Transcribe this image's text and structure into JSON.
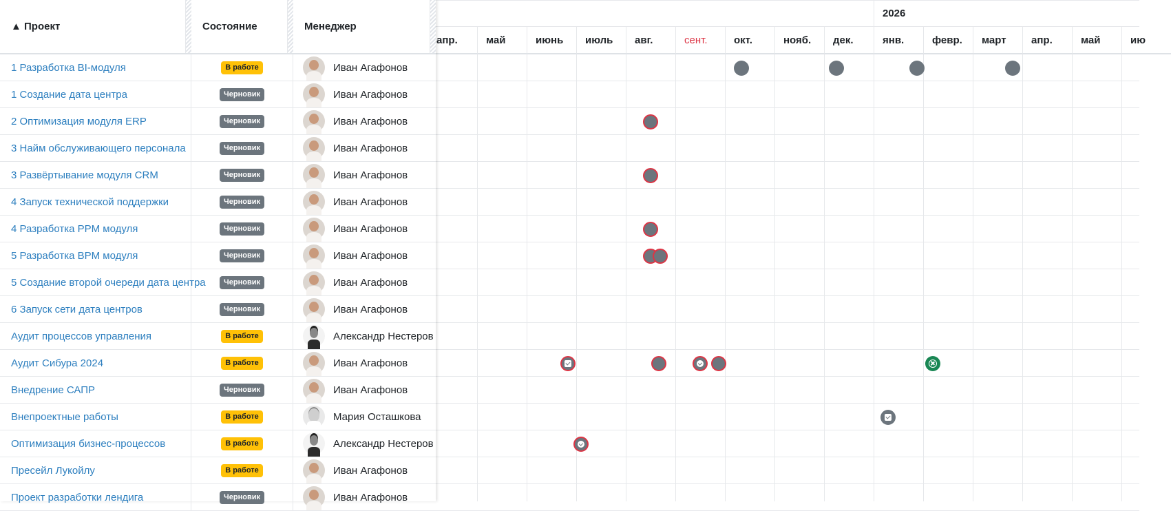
{
  "columns": {
    "project": "▲ Проект",
    "state": "Состояние",
    "manager": "Менеджер"
  },
  "colors": {
    "link": "#2d7fbf",
    "in_work": "#ffc107",
    "draft": "#6c757d",
    "overdue_border": "#dc3545",
    "done": "#198754",
    "current_month": "#dc3545"
  },
  "timeline": {
    "year_label": "2026",
    "months": [
      "апр.",
      "май",
      "июнь",
      "июль",
      "авг.",
      "сент.",
      "окт.",
      "нояб.",
      "дек.",
      "янв.",
      "февр.",
      "март",
      "апр.",
      "май",
      "ию"
    ],
    "current_month_index": 5
  },
  "rows": [
    {
      "project": "1 Разработка BI-модуля",
      "state": "В работе",
      "state_kind": "work",
      "manager": "Иван Агафонов",
      "avatar": "ivan",
      "marks": [
        {
          "month": 5.83,
          "kind": "plain"
        },
        {
          "month": 7.75,
          "kind": "plain"
        },
        {
          "month": 9.38,
          "kind": "plain"
        },
        {
          "month": 11.3,
          "kind": "plain"
        }
      ]
    },
    {
      "project": "1 Создание дата центра",
      "state": "Черновик",
      "state_kind": "draft",
      "manager": "Иван Агафонов",
      "avatar": "ivan",
      "marks": []
    },
    {
      "project": "2 Оптимизация модуля ERP",
      "state": "Черновик",
      "state_kind": "draft",
      "manager": "Иван Агафонов",
      "avatar": "ivan",
      "marks": [
        {
          "month": 4.0,
          "kind": "overdue"
        }
      ]
    },
    {
      "project": "3 Найм обслуживающего персонала",
      "state": "Черновик",
      "state_kind": "draft",
      "manager": "Иван Агафонов",
      "avatar": "ivan",
      "marks": []
    },
    {
      "project": "3 Развёртывание модуля CRM",
      "state": "Черновик",
      "state_kind": "draft",
      "manager": "Иван Агафонов",
      "avatar": "ivan",
      "marks": [
        {
          "month": 4.0,
          "kind": "overdue"
        }
      ]
    },
    {
      "project": "4 Запуск технической поддержки",
      "state": "Черновик",
      "state_kind": "draft",
      "manager": "Иван Агафонов",
      "avatar": "ivan",
      "marks": []
    },
    {
      "project": "4 Разработка PPM модуля",
      "state": "Черновик",
      "state_kind": "draft",
      "manager": "Иван Агафонов",
      "avatar": "ivan",
      "marks": [
        {
          "month": 4.0,
          "kind": "overdue"
        }
      ]
    },
    {
      "project": "5 Разработка BPM модуля",
      "state": "Черновик",
      "state_kind": "draft",
      "manager": "Иван Агафонов",
      "avatar": "ivan",
      "marks": [
        {
          "month": 4.0,
          "kind": "overdue"
        },
        {
          "month": 4.2,
          "kind": "overdue"
        }
      ]
    },
    {
      "project": "5 Создание второй очереди дата центра",
      "state": "Черновик",
      "state_kind": "draft",
      "manager": "Иван Агафонов",
      "avatar": "ivan",
      "marks": []
    },
    {
      "project": "6 Запуск сети дата центров",
      "state": "Черновик",
      "state_kind": "draft",
      "manager": "Иван Агафонов",
      "avatar": "ivan",
      "marks": []
    },
    {
      "project": "Аудит процессов управления",
      "state": "В работе",
      "state_kind": "work",
      "manager": "Александр Нестеров",
      "avatar": "alex",
      "marks": []
    },
    {
      "project": "Аудит Сибура 2024",
      "state": "В работе",
      "state_kind": "work",
      "manager": "Иван Агафонов",
      "avatar": "ivan",
      "marks": [
        {
          "month": 2.34,
          "kind": "overdue",
          "glyph": "checkbox"
        },
        {
          "month": 4.17,
          "kind": "overdue"
        },
        {
          "month": 5.0,
          "kind": "overdue",
          "glyph": "check-circle"
        },
        {
          "month": 5.38,
          "kind": "overdue"
        },
        {
          "month": 9.7,
          "kind": "green",
          "glyph": "cross-circle"
        }
      ]
    },
    {
      "project": "Внедрение САПР",
      "state": "Черновик",
      "state_kind": "draft",
      "manager": "Иван Агафонов",
      "avatar": "ivan",
      "marks": []
    },
    {
      "project": "Внепроектные работы",
      "state": "В работе",
      "state_kind": "work",
      "manager": "Мария Осташкова",
      "avatar": "maria",
      "marks": [
        {
          "month": 8.79,
          "kind": "plain",
          "glyph": "checkbox"
        }
      ]
    },
    {
      "project": "Оптимизация бизнес-процессов",
      "state": "В работе",
      "state_kind": "work",
      "manager": "Александр Нестеров",
      "avatar": "alex",
      "marks": [
        {
          "month": 2.6,
          "kind": "overdue",
          "glyph": "check-circle"
        }
      ]
    },
    {
      "project": "Пресейл Лукойлу",
      "state": "В работе",
      "state_kind": "work",
      "manager": "Иван Агафонов",
      "avatar": "ivan",
      "marks": []
    },
    {
      "project": "Проект разработки лендига",
      "state": "Черновик",
      "state_kind": "draft",
      "manager": "Иван Агафонов",
      "avatar": "ivan",
      "marks": []
    }
  ]
}
